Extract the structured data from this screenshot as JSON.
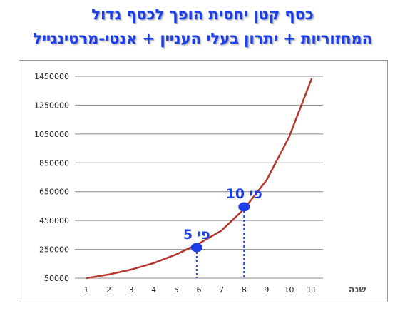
{
  "title_line1": "כסף קטן יחסית הופך לכסף גדול",
  "title_line2": "המחזוריות + יתרון בעלי העניין + אנטי-מרטינגייל",
  "colors": {
    "title": "#1c3ee8",
    "line": "#b5382f",
    "marker": "#1c3ee8",
    "grid": "#888888"
  },
  "chart_data": {
    "type": "line",
    "title": "",
    "xlabel": "שנה",
    "ylabel": "",
    "grid": true,
    "x_ticks": [
      1,
      2,
      3,
      4,
      5,
      6,
      7,
      8,
      9,
      10,
      11
    ],
    "y_ticks": [
      50000,
      250000,
      450000,
      650000,
      850000,
      1050000,
      1250000,
      1450000
    ],
    "ylim": [
      50000,
      1450000
    ],
    "xlim": [
      0.5,
      11.5
    ],
    "series": [
      {
        "name": "",
        "x": [
          1,
          2,
          3,
          4,
          5,
          6,
          7,
          8,
          9,
          10,
          11
        ],
        "y": [
          50000,
          75000,
          110000,
          155000,
          215000,
          290000,
          380000,
          530000,
          730000,
          1030000,
          1435000
        ]
      }
    ],
    "annotations": [
      {
        "label": "פי 5",
        "x": 5.9,
        "y": 263000
      },
      {
        "label": "פי 10",
        "x": 8,
        "y": 545000
      }
    ]
  }
}
